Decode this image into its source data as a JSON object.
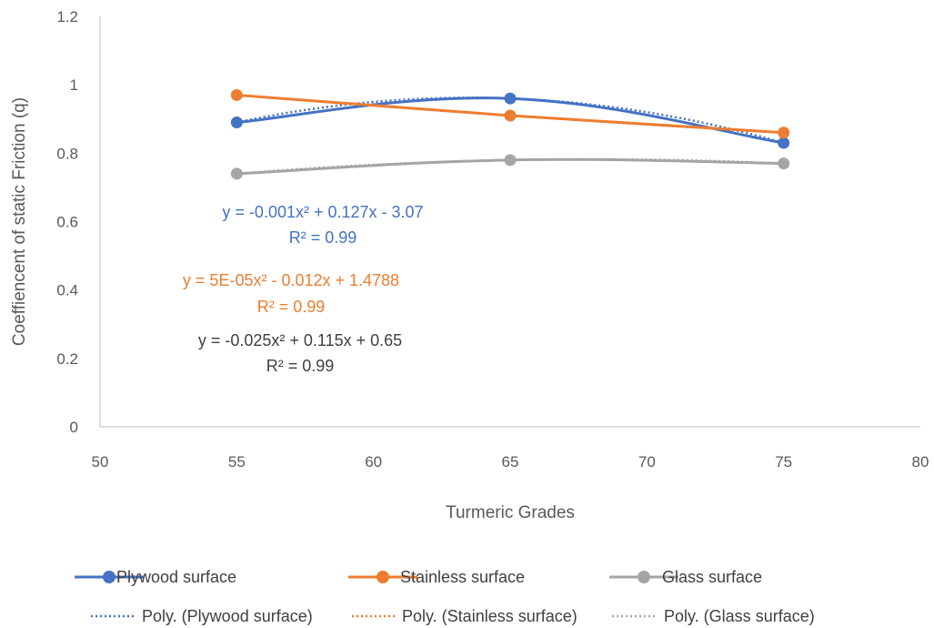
{
  "chart_data": {
    "type": "line",
    "title": "",
    "xlabel": "Turmeric  Grades",
    "ylabel": "Coeffiencent of static Friction (q)",
    "xlim": [
      50,
      80
    ],
    "ylim": [
      0,
      1.2
    ],
    "x_ticks": [
      "50",
      "55",
      "60",
      "65",
      "70",
      "75",
      "80"
    ],
    "y_ticks": [
      "0",
      "0.2",
      "0.4",
      "0.6",
      "0.8",
      "1",
      "1.2"
    ],
    "x": [
      55,
      65,
      75
    ],
    "series": [
      {
        "name": "Plywood surface",
        "values": [
          0.89,
          0.96,
          0.83
        ],
        "color": "#4472C4"
      },
      {
        "name": "Stainless surface",
        "values": [
          0.97,
          0.91,
          0.86
        ],
        "color": "#ED7D31"
      },
      {
        "name": "Glass surface",
        "values": [
          0.74,
          0.78,
          0.77
        ],
        "color": "#A5A5A5"
      }
    ],
    "trendlines": [
      {
        "name": "Poly. (Plywood surface)",
        "color": "#4472C4",
        "equation": "y = -0.001x² + 0.127x - 3.07",
        "r2": "R² = 0.99"
      },
      {
        "name": "Poly. (Stainless surface)",
        "color": "#ED7D31",
        "equation": "y = 5E-05x² - 0.012x + 1.4788",
        "r2": "R² = 0.99"
      },
      {
        "name": "Poly. (Glass surface)",
        "color": "#A5A5A5",
        "equation": "y = -0.025x² + 0.115x + 0.65",
        "r2": "R² = 0.99",
        "text_color": "#404040"
      }
    ],
    "grid": false,
    "legend_position": "bottom"
  }
}
